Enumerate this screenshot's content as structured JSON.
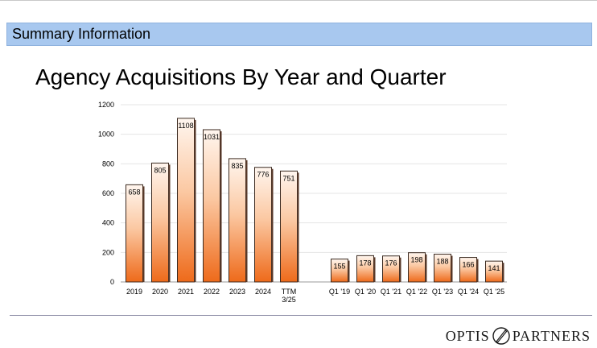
{
  "header": {
    "section_title": "Summary Information"
  },
  "slide_title": "Agency Acquisitions By Year and Quarter",
  "logo": {
    "left_text": "OPTIS",
    "right_text": "PARTNERS"
  },
  "colors": {
    "bar_dark": "#ee6a1a",
    "bar_light": "#fff6ef",
    "section_bar": "#a8c8ef"
  },
  "chart_data": {
    "type": "bar",
    "categories": [
      "2019",
      "2020",
      "2021",
      "2022",
      "2023",
      "2024",
      "TTM 3/25",
      "Q1 '19",
      "Q1 '20",
      "Q1 '21",
      "Q1 '22",
      "Q1 '23",
      "Q1 '24",
      "Q1 '25"
    ],
    "category_lines": [
      [
        "2019"
      ],
      [
        "2020"
      ],
      [
        "2021"
      ],
      [
        "2022"
      ],
      [
        "2023"
      ],
      [
        "2024"
      ],
      [
        "TTM",
        "3/25"
      ],
      [
        "Q1 '19"
      ],
      [
        "Q1 '20"
      ],
      [
        "Q1 '21"
      ],
      [
        "Q1 '22"
      ],
      [
        "Q1 '23"
      ],
      [
        "Q1 '24"
      ],
      [
        "Q1 '25"
      ]
    ],
    "values": [
      658,
      805,
      1108,
      1031,
      835,
      776,
      751,
      155,
      178,
      176,
      198,
      188,
      166,
      141
    ],
    "ylim": [
      0,
      1200
    ],
    "yticks": [
      0,
      200,
      400,
      600,
      800,
      1000,
      1200
    ],
    "grid": true,
    "legend": "none"
  }
}
